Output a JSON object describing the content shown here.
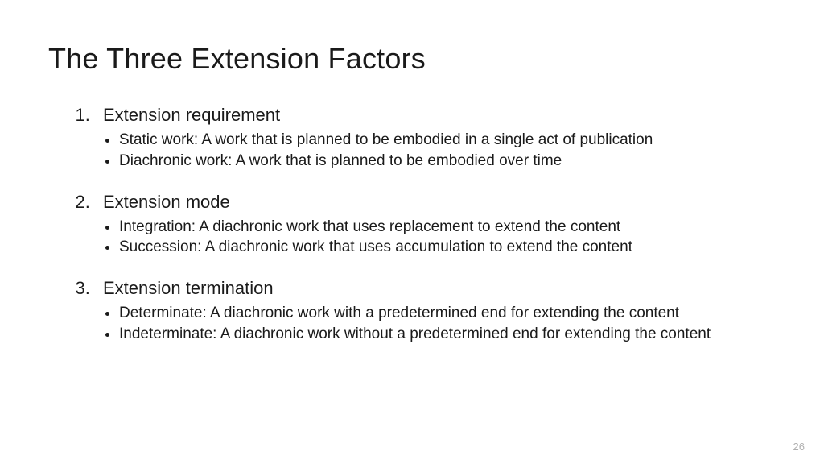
{
  "title": "The Three Extension Factors",
  "page_number": "26",
  "colors": {
    "background": "#ffffff",
    "text": "#1a1a1a",
    "pagenum": "#b0b0b0"
  },
  "typography": {
    "title_fontsize": 36,
    "heading_fontsize": 22,
    "body_fontsize": 19,
    "font_family": "Segoe UI / Calibri Light"
  },
  "sections": [
    {
      "heading": "Extension requirement",
      "bullets": [
        "Static work: A work that is planned to be embodied in a single act of publication",
        "Diachronic work: A work that is planned to be embodied over time"
      ]
    },
    {
      "heading": "Extension mode",
      "bullets": [
        "Integration: A diachronic work that uses replacement to extend the content",
        "Succession: A diachronic work that uses accumulation to extend the content"
      ]
    },
    {
      "heading": "Extension termination",
      "bullets": [
        "Determinate: A diachronic work with a predetermined end for extending the content",
        "Indeterminate: A diachronic work without a predetermined end for extending the content"
      ]
    }
  ]
}
